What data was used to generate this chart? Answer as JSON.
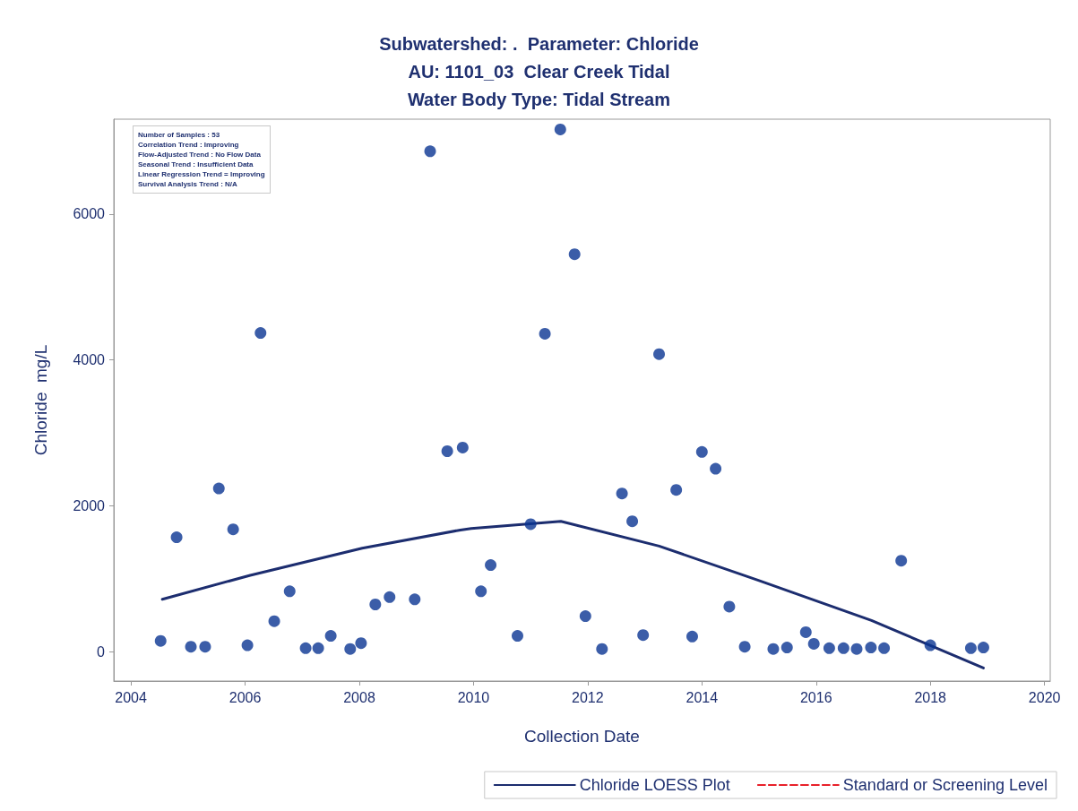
{
  "chart_data": {
    "type": "scatter",
    "title": "Subwatershed: .  Parameter: Chloride\nAU: 1101_03  Clear Creek Tidal\nWater Body Type: Tidal Stream",
    "xlabel": "Collection Date",
    "ylabel": "Chloride  mg/L",
    "annotations": [
      "Number of Samples : 53",
      "Correlation Trend : Improving",
      "Flow-Adjusted Trend : No Flow Data",
      "Seasonal Trend : Insufficient Data",
      "Linear Regression Trend = Improving",
      "Survival Analysis Trend : N/A"
    ],
    "xlim": [
      2003.7,
      2020.1
    ],
    "xticks": [
      2004,
      2006,
      2008,
      2010,
      2012,
      2014,
      2016,
      2018,
      2020
    ],
    "ylim": [
      -400,
      7300
    ],
    "yticks": [
      0,
      2000,
      4000,
      6000
    ],
    "grid": false,
    "legend": "bottom right",
    "marker": "circle",
    "series": [
      {
        "color": "#0a3592",
        "x": [
          2004.52,
          2004.8,
          2005.05,
          2005.3,
          2005.54,
          2005.79,
          2006.04,
          2006.27,
          2006.51,
          2006.78,
          2007.06,
          2007.28,
          2007.5,
          2007.84,
          2008.03,
          2008.28,
          2008.53,
          2008.97,
          2009.24,
          2009.54,
          2009.81,
          2010.13,
          2010.3,
          2010.77,
          2011.0,
          2011.25,
          2011.52,
          2011.77,
          2011.96,
          2012.25,
          2012.6,
          2012.78,
          2012.97,
          2013.25,
          2013.55,
          2013.83,
          2014.0,
          2014.24,
          2014.48,
          2014.75,
          2015.25,
          2015.49,
          2015.82,
          2015.96,
          2016.23,
          2016.48,
          2016.71,
          2016.96,
          2017.19,
          2017.49,
          2018.0,
          2018.71,
          2018.93
        ],
        "values": [
          150,
          1570,
          70,
          70,
          2240,
          1680,
          90,
          4370,
          420,
          830,
          50,
          50,
          220,
          40,
          120,
          650,
          750,
          720,
          6860,
          2750,
          2800,
          830,
          1190,
          220,
          1750,
          4360,
          7160,
          5450,
          490,
          40,
          2170,
          1790,
          230,
          4080,
          2220,
          210,
          2740,
          2510,
          620,
          70,
          40,
          60,
          270,
          110,
          50,
          50,
          40,
          60,
          50,
          1250,
          90,
          50,
          60
        ]
      },
      {
        "type": "line",
        "name": "Chloride LOESS Plot",
        "color": "#1c2d6f",
        "line_style": "solid",
        "marker": "none",
        "x": [
          2004.55,
          2006.09,
          2008.05,
          2009.77,
          2009.96,
          2011.53,
          2013.25,
          2014.99,
          2016.97,
          2018.93
        ],
        "values": [
          720,
          1050,
          1420,
          1670,
          1690,
          1790,
          1450,
          980,
          430,
          -220
        ]
      },
      {
        "type": "line",
        "name": "Standard or Screening Level",
        "color": "#e8202a",
        "line_style": "dashed",
        "marker": "none"
      }
    ]
  }
}
